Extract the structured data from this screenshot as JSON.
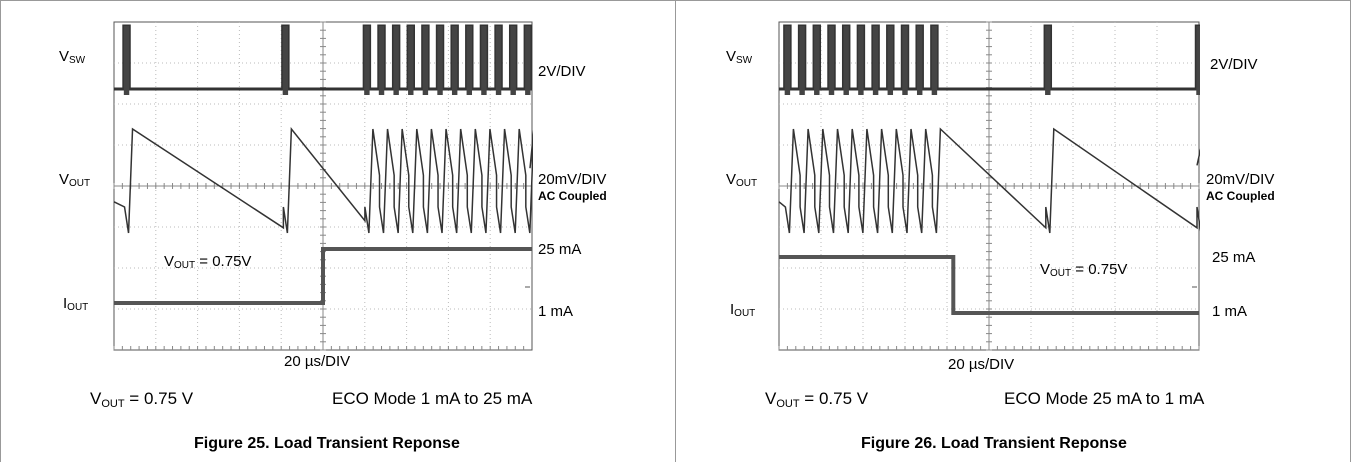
{
  "chart_data": [
    {
      "type": "line",
      "title": "Figure 25. Load Transient Reponse",
      "timebase": "20 µs/DIV",
      "conditions": {
        "vout": "0.75 V",
        "mode": "ECO Mode 1 mA to 25 mA",
        "vout_prefix": "V",
        "vout_sub": "OUT",
        "vout_sep": " = "
      },
      "annotation": {
        "prefix": "V",
        "sub": "OUT",
        "value": " = 0.75V"
      },
      "grid": {
        "x_divisions": 10,
        "y_divisions": 8
      },
      "channels": [
        {
          "name_main": "V",
          "name_sub": "SW",
          "scale": "2V/DIV",
          "note": ""
        },
        {
          "name_main": "V",
          "name_sub": "OUT",
          "scale": "20mV/DIV",
          "note": "AC Coupled"
        },
        {
          "name_main": "I",
          "name_sub": "OUT",
          "scale": "",
          "note": ""
        }
      ],
      "load_levels": [
        "25 mA",
        "1 mA"
      ],
      "load_step_time_div": 5.0,
      "load_before_ma": 1,
      "load_after_ma": 25,
      "vsw_pulse_times_div": [
        0.3,
        4.1,
        6.05,
        6.4,
        6.75,
        7.1,
        7.45,
        7.8,
        8.15,
        8.5,
        8.85,
        9.2,
        9.55,
        9.9
      ]
    },
    {
      "type": "line",
      "title": "Figure 26. Load Transient Reponse",
      "timebase": "20 µs/DIV",
      "conditions": {
        "vout": "0.75 V",
        "mode": "ECO Mode 25 mA to 1 mA",
        "vout_prefix": "V",
        "vout_sub": "OUT",
        "vout_sep": " = "
      },
      "annotation": {
        "prefix": "V",
        "sub": "OUT",
        "value": " = 0.75V"
      },
      "grid": {
        "x_divisions": 10,
        "y_divisions": 8
      },
      "channels": [
        {
          "name_main": "V",
          "name_sub": "SW",
          "scale": "2V/DIV",
          "note": ""
        },
        {
          "name_main": "V",
          "name_sub": "OUT",
          "scale": "20mV/DIV",
          "note": "AC Coupled"
        },
        {
          "name_main": "I",
          "name_sub": "OUT",
          "scale": "",
          "note": ""
        }
      ],
      "load_levels": [
        "25 mA",
        "1 mA"
      ],
      "load_step_time_div": 4.15,
      "load_before_ma": 25,
      "load_after_ma": 1,
      "vsw_pulse_times_div": [
        0.2,
        0.55,
        0.9,
        1.25,
        1.6,
        1.95,
        2.3,
        2.65,
        3.0,
        3.35,
        3.7,
        6.4,
        10.0
      ]
    }
  ]
}
